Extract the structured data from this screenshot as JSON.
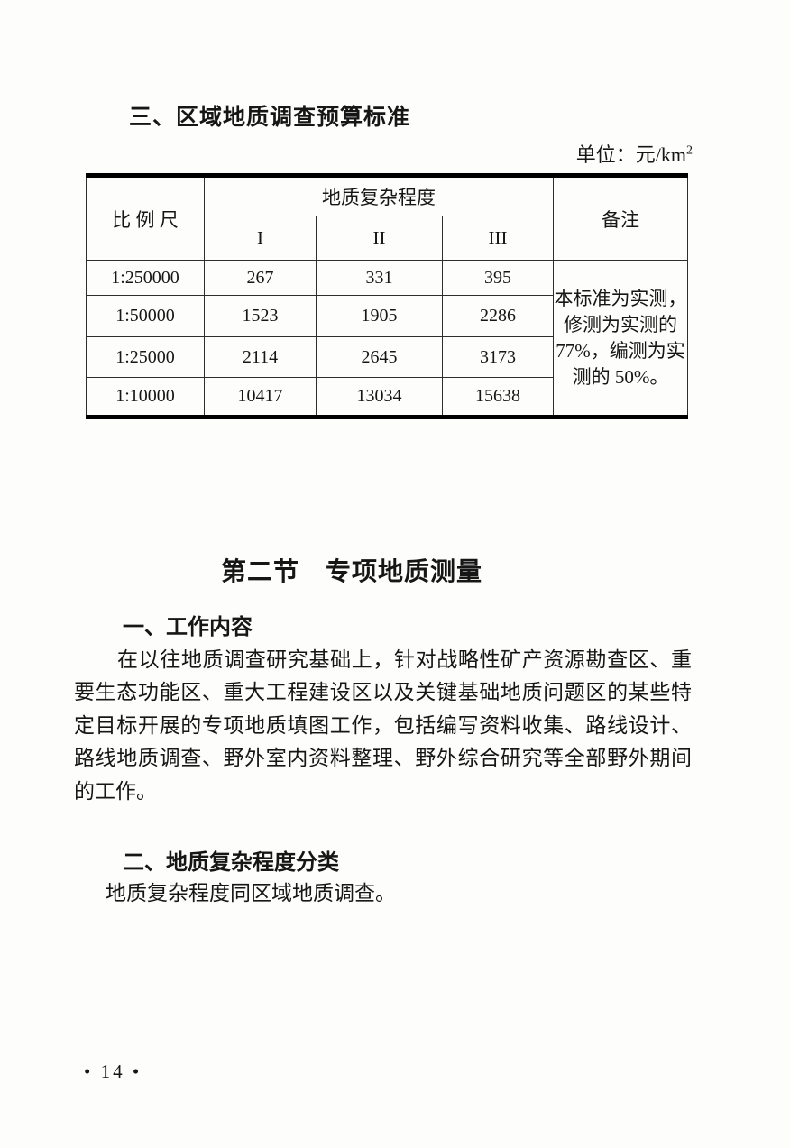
{
  "document": {
    "section3_heading": "三、区域地质调查预算标准",
    "unit_prefix": "单位：",
    "unit_base": "元/km",
    "unit_exponent": "2",
    "table": {
      "scale_header": "比 例 尺",
      "complexity_header": "地质复杂程度",
      "grade_headers": [
        "I",
        "II",
        "III"
      ],
      "remark_header": "备注",
      "rows": [
        {
          "scale": "1:250000",
          "values": [
            "267",
            "331",
            "395"
          ]
        },
        {
          "scale": "1:50000",
          "values": [
            "1523",
            "1905",
            "2286"
          ]
        },
        {
          "scale": "1:25000",
          "values": [
            "2114",
            "2645",
            "3173"
          ]
        },
        {
          "scale": "1:10000",
          "values": [
            "10417",
            "13034",
            "15638"
          ]
        }
      ],
      "remark_lines": [
        "本标准为实测，",
        "修测为实测的",
        "77%，编测为实",
        "测的 50%。"
      ]
    },
    "section2_heading": "第二节　专项地质测量",
    "subsection1_heading": "一、工作内容",
    "paragraph_lines": [
      "在以往地质调查研究基础上，针对战略性矿产资源勘查区、重",
      "要生态功能区、重大工程建设区以及关键基础地质问题区的某些特",
      "定目标开展的专项地质填图工作，包括编写资料收集、路线设计、",
      "路线地质调查、野外室内资料整理、野外综合研究等全部野外期间",
      "的工作。"
    ],
    "subsection2_heading": "二、地质复杂程度分类",
    "subsection2_body": "地质复杂程度同区域地质调查。",
    "page_number": "• 14 •"
  }
}
